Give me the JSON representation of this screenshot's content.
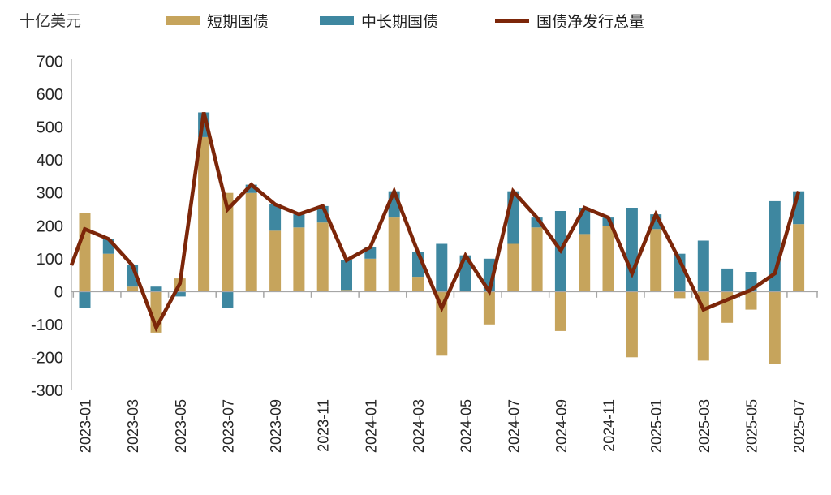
{
  "unit_label": "十亿美元",
  "legend": [
    {
      "label": "短期国债",
      "color": "#C6A45C",
      "type": "bar"
    },
    {
      "label": "中长期国债",
      "color": "#3E87A0",
      "type": "bar"
    },
    {
      "label": "国债净发行总量",
      "color": "#7C2609",
      "type": "line"
    }
  ],
  "colors": {
    "short_bar": "#C6A45C",
    "long_bar": "#3E87A0",
    "net_line": "#7C2609",
    "zero_axis": "#A6A6A6",
    "y_axis": "#C0C0C0",
    "tick": "#A6A6A6",
    "text": "#262626"
  },
  "chart_data": {
    "type": "bar",
    "subtype": "stacked-bars-with-line-overlay",
    "title": "",
    "ylabel": "十亿美元",
    "ylim": [
      -300,
      700
    ],
    "ytick_step": 100,
    "grid": false,
    "legend_position": "top",
    "categories": [
      "2023-01",
      "2023-02",
      "2023-03",
      "2023-04",
      "2023-05",
      "2023-06",
      "2023-07",
      "2023-08",
      "2023-09",
      "2023-10",
      "2023-11",
      "2023-12",
      "2024-01",
      "2024-02",
      "2024-03",
      "2024-04",
      "2024-05",
      "2024-06",
      "2024-07",
      "2024-08",
      "2024-09",
      "2024-10",
      "2024-11",
      "2024-12",
      "2025-01",
      "2025-02",
      "2025-03",
      "2025-04",
      "2025-05",
      "2025-06",
      "2025-07"
    ],
    "xtick_labels": [
      "2023-01",
      "2023-03",
      "2023-05",
      "2023-07",
      "2023-09",
      "2023-11",
      "2024-01",
      "2024-03",
      "2024-05",
      "2024-07",
      "2024-09",
      "2024-11",
      "2025-01",
      "2025-03",
      "2025-05",
      "2025-07"
    ],
    "ytick_labels": [
      700,
      600,
      500,
      400,
      300,
      200,
      100,
      0,
      -100,
      -200,
      -300
    ],
    "series": [
      {
        "name": "短期国债",
        "type": "bar",
        "color": "#C6A45C",
        "values": [
          240,
          115,
          15,
          -125,
          40,
          470,
          300,
          300,
          185,
          195,
          210,
          5,
          100,
          225,
          45,
          -195,
          0,
          -100,
          145,
          195,
          -120,
          175,
          200,
          -200,
          190,
          -20,
          -210,
          -95,
          -55,
          -220,
          205
        ]
      },
      {
        "name": "中长期国债",
        "type": "bar",
        "color": "#3E87A0",
        "values": [
          -50,
          45,
          65,
          15,
          -15,
          75,
          -50,
          25,
          80,
          40,
          50,
          90,
          35,
          80,
          75,
          145,
          110,
          100,
          160,
          30,
          245,
          80,
          25,
          255,
          45,
          115,
          155,
          70,
          60,
          275,
          100
        ]
      },
      {
        "name": "国债净发行总量",
        "type": "line",
        "color": "#7C2609",
        "values": [
          190,
          160,
          80,
          -110,
          25,
          545,
          250,
          325,
          265,
          235,
          260,
          95,
          135,
          305,
          120,
          -50,
          110,
          0,
          305,
          225,
          125,
          255,
          225,
          55,
          235,
          95,
          -55,
          -25,
          5,
          55,
          305
        ]
      }
    ],
    "line_axis_intercept": 80
  }
}
